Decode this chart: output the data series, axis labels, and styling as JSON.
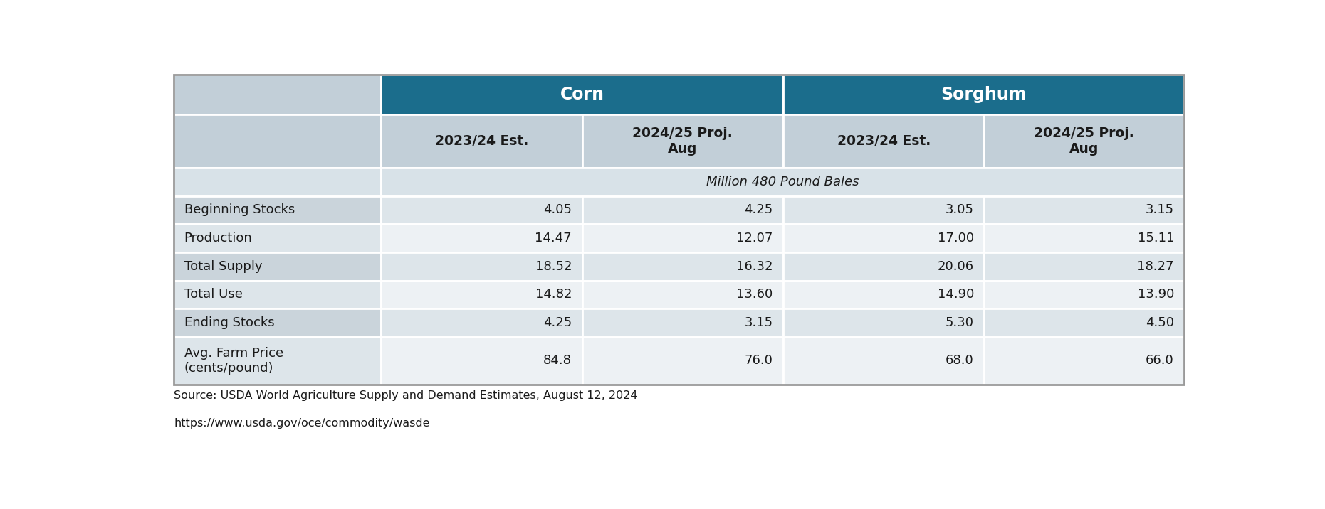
{
  "source_line1": "Source: USDA World Agriculture Supply and Demand Estimates, August 12, 2024",
  "source_line2": "https://www.usda.gov/oce/commodity/wasde",
  "rows": [
    [
      "Beginning Stocks",
      "4.05",
      "4.25",
      "3.05",
      "3.15"
    ],
    [
      "Production",
      "14.47",
      "12.07",
      "17.00",
      "15.11"
    ],
    [
      "Total Supply",
      "18.52",
      "16.32",
      "20.06",
      "18.27"
    ],
    [
      "Total Use",
      "14.82",
      "13.60",
      "14.90",
      "13.90"
    ],
    [
      "Ending Stocks",
      "4.25",
      "3.15",
      "5.30",
      "4.50"
    ],
    [
      "Avg. Farm Price\n(cents/pound)",
      "84.8",
      "76.0",
      "68.0",
      "66.0"
    ]
  ],
  "header_bg_color": "#1b6d8c",
  "header_text_color": "#ffffff",
  "subheader_bg_color": "#c2cfd8",
  "unit_bg_color": "#d8e2e8",
  "row_colors": [
    "#dde5ea",
    "#edf1f4",
    "#dde5ea",
    "#edf1f4",
    "#dde5ea",
    "#edf1f4"
  ],
  "label_col_colors": [
    "#cad4db",
    "#dde5ea",
    "#cad4db",
    "#dde5ea",
    "#cad4db",
    "#dde5ea"
  ],
  "border_color": "#ffffff",
  "text_color": "#1a1a1a",
  "fig_width": 18.61,
  "fig_height": 7.16,
  "dpi": 100
}
